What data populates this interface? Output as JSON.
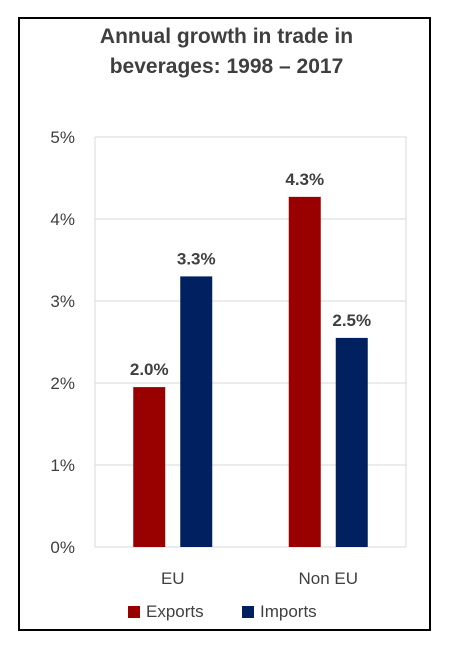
{
  "title": {
    "line1": "Annual growth in trade in",
    "line2": "beverages: 1998 – 2017"
  },
  "colors": {
    "exports": "#990000",
    "imports": "#002060",
    "grid": "#d9d9d9",
    "text": "#404040"
  },
  "chart_data": {
    "type": "bar",
    "title": "Annual growth in trade in beverages: 1998 – 2017",
    "categories": [
      "EU",
      "Non EU"
    ],
    "series": [
      {
        "name": "Exports",
        "values": [
          1.95,
          4.27
        ],
        "labels": [
          "2.0%",
          "4.3%"
        ],
        "color": "#990000"
      },
      {
        "name": "Imports",
        "values": [
          3.3,
          2.55
        ],
        "labels": [
          "3.3%",
          "2.5%"
        ],
        "color": "#002060"
      }
    ],
    "ylim": [
      0,
      5
    ],
    "yticks": [
      0,
      1,
      2,
      3,
      4,
      5
    ],
    "ytick_labels": [
      "0%",
      "1%",
      "2%",
      "3%",
      "4%",
      "5%"
    ],
    "grid": true,
    "legend": "bottom",
    "xlabel": "",
    "ylabel": ""
  }
}
